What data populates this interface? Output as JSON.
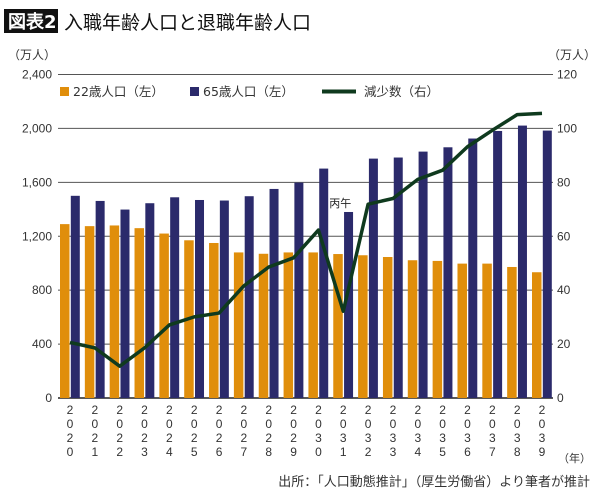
{
  "header": {
    "badge": "図表2",
    "title": "入職年齢人口と退職年齢人口"
  },
  "source": "出所：「人口動態推計」（厚生労働省）より筆者が推計",
  "chart_data": {
    "type": "bar+line",
    "title": "入職年齢人口と退職年齢人口",
    "left_unit": "（万人）",
    "right_unit": "（万人）",
    "x_unit": "（年）",
    "left_ylim": [
      0,
      2400
    ],
    "left_ticks": [
      "0",
      "400",
      "800",
      "1,200",
      "1,600",
      "2,000",
      "2,400"
    ],
    "right_ylim": [
      0,
      120
    ],
    "right_ticks": [
      "0",
      "20",
      "40",
      "60",
      "80",
      "100",
      "120"
    ],
    "grid": true,
    "legend_position": "top-left",
    "categories": [
      "2020",
      "2021",
      "2022",
      "2023",
      "2024",
      "2025",
      "2026",
      "2027",
      "2028",
      "2029",
      "2030",
      "2031",
      "2032",
      "2033",
      "2034",
      "2035",
      "2036",
      "2037",
      "2038",
      "2039"
    ],
    "series": [
      {
        "name": "22歳人口（左）",
        "type": "bar",
        "axis": "left",
        "color": "#E08E0B",
        "values": [
          1290,
          1275,
          1280,
          1260,
          1220,
          1170,
          1150,
          1080,
          1070,
          1080,
          1080,
          1068,
          1059,
          1046,
          1022,
          1017,
          997,
          997,
          972,
          933
        ]
      },
      {
        "name": "65歳人口（左）",
        "type": "bar",
        "axis": "left",
        "color": "#2B2A6B",
        "values": [
          1500,
          1462,
          1398,
          1445,
          1489,
          1469,
          1465,
          1497,
          1551,
          1598,
          1702,
          1380,
          1776,
          1784,
          1828,
          1860,
          1925,
          1981,
          2021,
          1984
        ]
      },
      {
        "name": "減少数（右）",
        "type": "line",
        "axis": "right",
        "color": "#0F3A1E",
        "values": [
          20.6,
          18.6,
          11.8,
          18.6,
          27.1,
          30.1,
          31.5,
          41.6,
          48.6,
          52.0,
          62.3,
          32.2,
          71.9,
          74.0,
          81.1,
          84.5,
          93.2,
          99.3,
          105.1,
          105.6
        ]
      }
    ],
    "annotations": [
      {
        "category": "2031",
        "text": "丙午"
      }
    ]
  }
}
